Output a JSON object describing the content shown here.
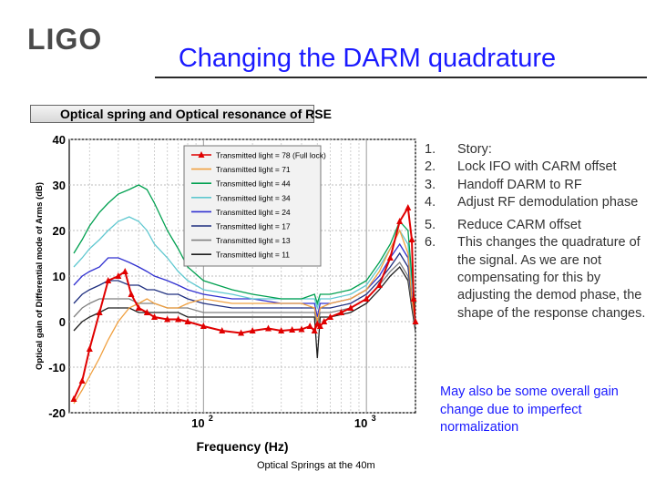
{
  "header": {
    "logo": "LIGO",
    "title": "Changing the DARM quadrature"
  },
  "chart_heading": "Optical spring and Optical resonance of RSE",
  "story": [
    {
      "num": "1.",
      "text": "Story:"
    },
    {
      "num": "2.",
      "text": "Lock IFO with CARM offset"
    },
    {
      "num": "3.",
      "text": "Handoff DARM to RF"
    },
    {
      "num": "4.",
      "text": "Adjust RF demodulation phase"
    },
    {
      "num": "5.",
      "text": "Reduce CARM offset"
    },
    {
      "num": "6.",
      "text": "This changes the quadrature of the signal.  As we are not compensating for this by adjusting the demod phase, the shape of the response changes."
    }
  ],
  "note": "May also be some overall gain change due to imperfect normalization",
  "caption": "Optical Springs at the 40m",
  "colors": {
    "title": "#1a1aff",
    "note": "#1a1aff"
  },
  "chart_data": {
    "type": "line",
    "xscale": "log",
    "xlabel": "Frequency (Hz)",
    "ylabel": "Optical gain of Differential mode of Arms (dB)",
    "xlim": [
      15,
      2000
    ],
    "ylim": [
      -20,
      40
    ],
    "xtick_labels": [
      {
        "value": 100,
        "base": "10",
        "exp": "2"
      },
      {
        "value": 1000,
        "base": "10",
        "exp": "3"
      }
    ],
    "yticks": [
      40,
      30,
      20,
      10,
      0,
      -10,
      -20
    ],
    "ytick_labels": [
      "40",
      "30",
      "20",
      "10",
      "0",
      "-10",
      "-20"
    ],
    "grid": true,
    "legend_position": "top-right",
    "series": [
      {
        "name": "Transmitted light = 78 (Full lock)",
        "color": "#e00000",
        "marker": "triangle",
        "x": [
          16,
          18,
          20,
          23,
          26,
          30,
          33,
          36,
          40,
          45,
          50,
          60,
          70,
          80,
          100,
          130,
          170,
          200,
          250,
          300,
          350,
          400,
          450,
          480,
          500,
          520,
          550,
          600,
          700,
          800,
          1000,
          1200,
          1400,
          1600,
          1800,
          1900,
          1950,
          2000
        ],
        "y": [
          -17,
          -13,
          -6,
          2,
          9,
          10,
          11,
          6,
          3,
          2,
          1,
          0.5,
          0.5,
          0,
          -1,
          -2,
          -2.5,
          -2,
          -1.5,
          -2,
          -1.8,
          -1.7,
          -1,
          -2,
          -0.5,
          -1,
          0,
          1,
          2,
          3,
          5,
          8,
          14,
          22,
          25,
          18,
          5,
          0
        ]
      },
      {
        "name": "Transmitted light = 71",
        "color": "#f0a040",
        "x": [
          16,
          18,
          20,
          23,
          26,
          30,
          35,
          40,
          45,
          50,
          60,
          70,
          80,
          100,
          150,
          200,
          300,
          400,
          480,
          500,
          520,
          600,
          800,
          1000,
          1200,
          1400,
          1600,
          1800,
          1900,
          2000
        ],
        "y": [
          -18,
          -15,
          -12,
          -8,
          -4,
          0,
          3,
          4,
          5,
          4,
          3,
          3,
          4,
          5,
          4,
          4,
          4,
          4,
          3,
          0,
          3,
          4,
          5,
          7,
          11,
          16,
          20,
          15,
          5,
          0
        ]
      },
      {
        "name": "Transmitted light = 44",
        "color": "#00a050",
        "x": [
          16,
          18,
          20,
          23,
          26,
          30,
          35,
          40,
          45,
          50,
          60,
          70,
          80,
          100,
          150,
          200,
          300,
          400,
          480,
          500,
          520,
          600,
          800,
          1000,
          1200,
          1400,
          1600,
          1800,
          1900,
          2000
        ],
        "y": [
          15,
          18,
          21,
          24,
          26,
          28,
          29,
          30,
          29,
          26,
          20,
          16,
          12,
          9,
          7,
          6,
          5,
          5,
          6,
          4,
          6,
          6,
          7,
          9,
          13,
          17,
          22,
          20,
          10,
          3
        ]
      },
      {
        "name": "Transmitted light = 34",
        "color": "#60c8d0",
        "x": [
          16,
          18,
          20,
          23,
          26,
          30,
          35,
          40,
          45,
          50,
          60,
          70,
          80,
          100,
          150,
          200,
          300,
          400,
          480,
          500,
          520,
          600,
          800,
          1000,
          1200,
          1400,
          1600,
          1800,
          1900,
          2000
        ],
        "y": [
          12,
          14,
          16,
          18,
          20,
          22,
          23,
          22,
          20,
          17,
          14,
          11,
          9,
          7,
          6,
          5,
          5,
          5,
          5,
          3,
          5,
          5,
          6,
          8,
          12,
          16,
          20,
          17,
          8,
          2
        ]
      },
      {
        "name": "Transmitted light = 24",
        "color": "#3030d0",
        "x": [
          16,
          18,
          20,
          23,
          26,
          30,
          35,
          40,
          45,
          50,
          60,
          70,
          80,
          100,
          150,
          200,
          300,
          400,
          480,
          500,
          520,
          600,
          800,
          1000,
          1200,
          1400,
          1600,
          1800,
          1900,
          2000
        ],
        "y": [
          8,
          10,
          11,
          12,
          14,
          14,
          13,
          12,
          11,
          10,
          9,
          8,
          7,
          6,
          5,
          5,
          4,
          4,
          4,
          1,
          4,
          4,
          5,
          7,
          10,
          14,
          17,
          14,
          6,
          1
        ]
      },
      {
        "name": "Transmitted light = 17",
        "color": "#203080",
        "x": [
          16,
          18,
          20,
          23,
          26,
          30,
          35,
          40,
          45,
          50,
          60,
          70,
          80,
          100,
          150,
          200,
          300,
          400,
          480,
          500,
          520,
          600,
          800,
          1000,
          1200,
          1400,
          1600,
          1800,
          1900,
          2000
        ],
        "y": [
          4,
          6,
          7,
          8,
          9,
          9,
          8,
          8,
          7,
          7,
          6,
          6,
          5,
          4,
          3,
          3,
          3,
          3,
          3,
          0,
          3,
          3,
          4,
          6,
          9,
          12,
          15,
          12,
          5,
          0
        ]
      },
      {
        "name": "Transmitted light = 13",
        "color": "#808080",
        "x": [
          16,
          18,
          20,
          23,
          26,
          30,
          35,
          40,
          45,
          50,
          60,
          70,
          80,
          100,
          150,
          200,
          300,
          400,
          480,
          500,
          520,
          600,
          800,
          1000,
          1200,
          1400,
          1600,
          1800,
          1900,
          2000
        ],
        "y": [
          1,
          3,
          4,
          5,
          5,
          5,
          5,
          4,
          4,
          4,
          3,
          3,
          3,
          2,
          2,
          2,
          2,
          2,
          2,
          -1,
          2,
          2,
          3,
          5,
          8,
          11,
          13,
          10,
          4,
          -1
        ]
      },
      {
        "name": "Transmitted light = 11",
        "color": "#202020",
        "x": [
          16,
          18,
          20,
          23,
          26,
          30,
          35,
          40,
          45,
          50,
          60,
          70,
          80,
          100,
          150,
          200,
          300,
          400,
          480,
          500,
          520,
          600,
          800,
          1000,
          1200,
          1400,
          1600,
          1800,
          1900,
          2000
        ],
        "y": [
          -2,
          0,
          1,
          2,
          3,
          3,
          3,
          2,
          2,
          2,
          2,
          2,
          1,
          1,
          1,
          1,
          1,
          1,
          1,
          -8,
          1,
          1,
          2,
          4,
          7,
          10,
          12,
          9,
          3,
          -2
        ]
      }
    ]
  }
}
